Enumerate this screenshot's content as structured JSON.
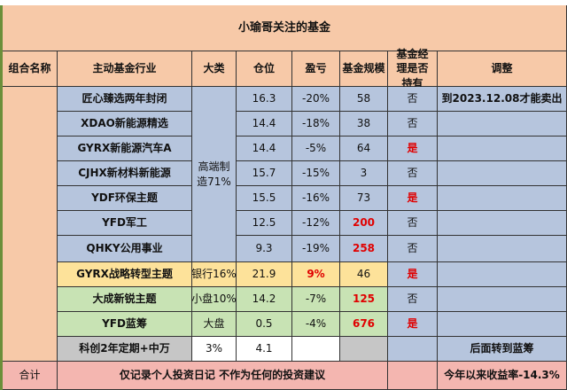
{
  "title": "小瑜哥关注的基金",
  "headers": [
    "组合名称",
    "主动基金行业",
    "大类",
    "仓位",
    "盈亏",
    "基金规模",
    "基金经理是否持有",
    "调整"
  ],
  "rows": [
    {
      "name": "匠心臻选两年封闭",
      "pos": "16.3",
      "pl": "-20%",
      "size": "58",
      "hold": "否",
      "adjust": "到2023.12.08才能卖出"
    },
    {
      "name": "XDAO新能源精选",
      "pos": "14.4",
      "pl": "-18%",
      "size": "38",
      "hold": "否",
      "adjust": ""
    },
    {
      "name": "GYRX新能源汽车A",
      "pos": "14.4",
      "pl": "-5%",
      "size": "64",
      "hold": "是",
      "adjust": ""
    },
    {
      "name": "CJHX新材料新能源",
      "pos": "15.7",
      "pl": "-15%",
      "size": "3",
      "hold": "否",
      "adjust": ""
    },
    {
      "name": "YDF环保主题",
      "pos": "15.5",
      "pl": "-16%",
      "size": "73",
      "hold": "是",
      "adjust": ""
    },
    {
      "name": "YFD军工",
      "pos": "12.5",
      "pl": "-12%",
      "size": "200",
      "hold": "否",
      "adjust": ""
    },
    {
      "name": "QHKY公用事业",
      "pos": "9.3",
      "pl": "-19%",
      "size": "258",
      "hold": "否",
      "adjust": ""
    },
    {
      "name": "GYRX战略转型主题",
      "category": "银行16%",
      "pos": "21.9",
      "pl": "9%",
      "size": "46",
      "hold": "是",
      "adjust": ""
    },
    {
      "name": "大成新锐主题",
      "category": "小盘10%",
      "pos": "14.2",
      "pl": "-7%",
      "size": "125",
      "hold": "否",
      "adjust": ""
    },
    {
      "name": "YFD蓝筹",
      "category": "大盘",
      "pos": "0.5",
      "pl": "-4%",
      "size": "676",
      "hold": "是",
      "adjust": ""
    },
    {
      "name": "科创2年定期+中万",
      "category": "3%",
      "pos": "4.1",
      "pl": "",
      "size": "",
      "hold": "",
      "adjust": "后面转到蓝筹"
    }
  ],
  "group_category": "高端制造71%",
  "footer": {
    "label": "合计",
    "note": "仅记录个人投资日记 不作为任何的投资建议",
    "summary": "今年以来收益率-14.3%"
  }
}
